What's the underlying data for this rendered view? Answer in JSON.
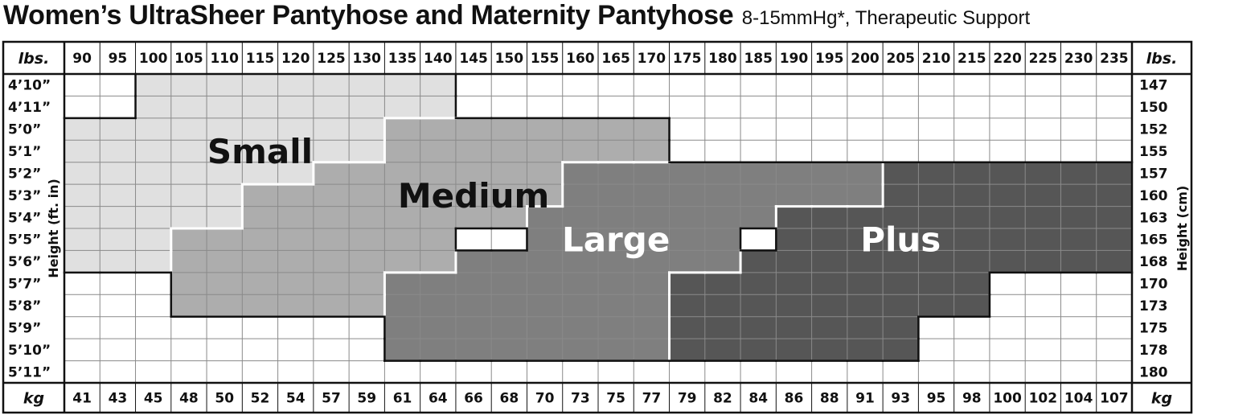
{
  "title": "Women’s UltraSheer Pantyhose and Maternity Pantyhose",
  "subtitle": "8-15mmHg*, Therapeutic Support",
  "colors": {
    "Small": "#e0e0e0",
    "Medium": "#adadad",
    "Large": "#7f7f7f",
    "Plus": "#565656",
    "grid": "#8a8a8a",
    "border": "#111111",
    "white_line": "#ffffff"
  },
  "chart_data": {
    "type": "heatmap",
    "header_left_top": "lbs.",
    "header_right_top": "lbs.",
    "header_left_bottom": "kg",
    "header_right_bottom": "kg",
    "ylabel_left": "Height (ft. in)",
    "ylabel_right": "Height (cm)",
    "x_lbs": [
      "90",
      "95",
      "100",
      "105",
      "110",
      "115",
      "120",
      "125",
      "130",
      "135",
      "140",
      "145",
      "150",
      "155",
      "160",
      "165",
      "170",
      "175",
      "180",
      "185",
      "190",
      "195",
      "200",
      "205",
      "210",
      "215",
      "220",
      "225",
      "230",
      "235"
    ],
    "x_kg": [
      "41",
      "43",
      "45",
      "48",
      "50",
      "52",
      "54",
      "57",
      "59",
      "61",
      "64",
      "66",
      "68",
      "70",
      "73",
      "75",
      "77",
      "79",
      "82",
      "84",
      "86",
      "88",
      "91",
      "93",
      "95",
      "98",
      "100",
      "102",
      "104",
      "107"
    ],
    "y_ft_in": [
      "4’10”",
      "4’11”",
      "5’0”",
      "5’1”",
      "5’2”",
      "5’3”",
      "5’4”",
      "5’5”",
      "5’6”",
      "5’7”",
      "5’8”",
      "5’9”",
      "5’10”",
      "5’11”"
    ],
    "y_cm": [
      "147",
      "150",
      "152",
      "155",
      "157",
      "160",
      "163",
      "165",
      "168",
      "170",
      "173",
      "175",
      "178",
      "180"
    ],
    "sizes": [
      {
        "name": "Small",
        "label_color": "#111111",
        "label_at": {
          "lbs": 113,
          "height": "5’1”"
        },
        "ranges": [
          {
            "height": "4’10”",
            "lbs_min": 100,
            "lbs_max": 140
          },
          {
            "height": "4’11”",
            "lbs_min": 100,
            "lbs_max": 140
          },
          {
            "height": "5’0”",
            "lbs_min": 90,
            "lbs_max": 130
          },
          {
            "height": "5’1”",
            "lbs_min": 90,
            "lbs_max": 130
          },
          {
            "height": "5’2”",
            "lbs_min": 90,
            "lbs_max": 120
          },
          {
            "height": "5’3”",
            "lbs_min": 90,
            "lbs_max": 110
          },
          {
            "height": "5’4”",
            "lbs_min": 90,
            "lbs_max": 110
          },
          {
            "height": "5’5”",
            "lbs_min": 90,
            "lbs_max": 100
          },
          {
            "height": "5’6”",
            "lbs_min": 90,
            "lbs_max": 100
          }
        ]
      },
      {
        "name": "Medium",
        "label_color": "#111111",
        "label_at": {
          "lbs": 143,
          "height": "5’3”"
        },
        "ranges": [
          {
            "height": "5’0”",
            "lbs_min": 135,
            "lbs_max": 170
          },
          {
            "height": "5’1”",
            "lbs_min": 135,
            "lbs_max": 170
          },
          {
            "height": "5’2”",
            "lbs_min": 125,
            "lbs_max": 155
          },
          {
            "height": "5’3”",
            "lbs_min": 115,
            "lbs_max": 155
          },
          {
            "height": "5’4”",
            "lbs_min": 115,
            "lbs_max": 150
          },
          {
            "height": "5’5”",
            "lbs_min": 105,
            "lbs_max": 140
          },
          {
            "height": "5’6”",
            "lbs_min": 105,
            "lbs_max": 140
          },
          {
            "height": "5’7”",
            "lbs_min": 105,
            "lbs_max": 130
          },
          {
            "height": "5’8”",
            "lbs_min": 105,
            "lbs_max": 130
          }
        ]
      },
      {
        "name": "Large",
        "label_color": "#ffffff",
        "label_at": {
          "lbs": 165,
          "height": "5’5”"
        },
        "ranges": [
          {
            "height": "5’2”",
            "lbs_min": 160,
            "lbs_max": 200
          },
          {
            "height": "5’3”",
            "lbs_min": 160,
            "lbs_max": 200
          },
          {
            "height": "5’4”",
            "lbs_min": 155,
            "lbs_max": 185
          },
          {
            "height": "5’5”",
            "lbs_min": 155,
            "lbs_max": 180
          },
          {
            "height": "5’6”",
            "lbs_min": 145,
            "lbs_max": 180
          },
          {
            "height": "5’7”",
            "lbs_min": 135,
            "lbs_max": 170
          },
          {
            "height": "5’8”",
            "lbs_min": 135,
            "lbs_max": 170
          },
          {
            "height": "5’9”",
            "lbs_min": 135,
            "lbs_max": 170
          },
          {
            "height": "5’10”",
            "lbs_min": 135,
            "lbs_max": 170
          }
        ]
      },
      {
        "name": "Plus",
        "label_color": "#ffffff",
        "label_at": {
          "lbs": 205,
          "height": "5’5”"
        },
        "ranges": [
          {
            "height": "5’2”",
            "lbs_min": 205,
            "lbs_max": 235
          },
          {
            "height": "5’3”",
            "lbs_min": 205,
            "lbs_max": 235
          },
          {
            "height": "5’4”",
            "lbs_min": 190,
            "lbs_max": 235
          },
          {
            "height": "5’5”",
            "lbs_min": 190,
            "lbs_max": 235
          },
          {
            "height": "5’6”",
            "lbs_min": 185,
            "lbs_max": 235
          },
          {
            "height": "5’7”",
            "lbs_min": 175,
            "lbs_max": 215
          },
          {
            "height": "5’8”",
            "lbs_min": 175,
            "lbs_max": 215
          },
          {
            "height": "5’9”",
            "lbs_min": 175,
            "lbs_max": 205
          },
          {
            "height": "5’10”",
            "lbs_min": 175,
            "lbs_max": 205
          }
        ]
      }
    ]
  }
}
